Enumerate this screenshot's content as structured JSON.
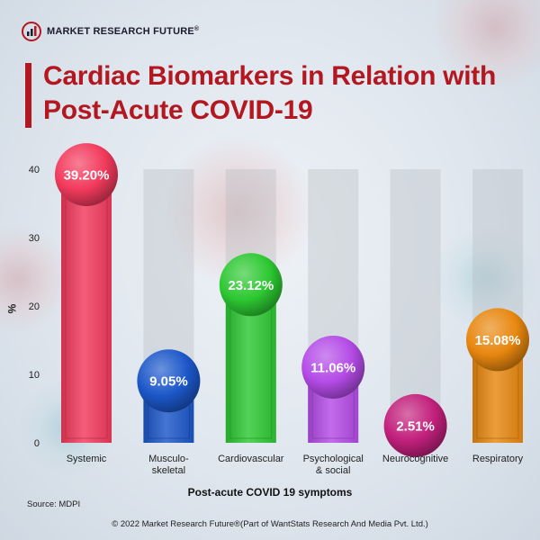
{
  "brand": {
    "name": "MARKET RESEARCH FUTURE",
    "reg": "®"
  },
  "title": "Cardiac Biomarkers in Relation with Post-Acute COVID-19",
  "source": "Source: MDPI",
  "copyright": "© 2022 Market Research Future®(Part of WantStats Research And Media Pvt. Ltd.)",
  "chart_data": {
    "type": "bar",
    "categories": [
      "Systemic",
      "Musculo-\nskeletal",
      "Cardiovascular",
      "Psychological\n& social",
      "Neurocognitive",
      "Respiratory"
    ],
    "values": [
      39.2,
      9.05,
      23.12,
      11.06,
      2.51,
      15.08
    ],
    "data_labels": [
      "39.20%",
      "9.05%",
      "23.12%",
      "11.06%",
      "2.51%",
      "15.08%"
    ],
    "colors": [
      "#f23a5c",
      "#1c57c9",
      "#2dc832",
      "#b44be6",
      "#c2207c",
      "#e8870f"
    ],
    "title": "Cardiac Biomarkers in Relation with Post-Acute COVID-19",
    "xlabel": "Post-acute COVID 19 symptoms",
    "ylabel": "%",
    "ylim": [
      0,
      40
    ],
    "yticks": [
      0,
      10,
      20,
      30,
      40
    ],
    "grid": false,
    "legend": "none"
  }
}
